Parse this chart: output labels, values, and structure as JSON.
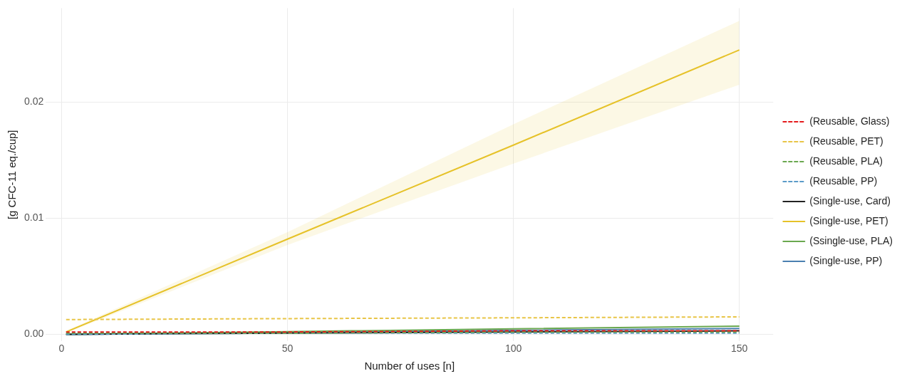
{
  "chart_data": {
    "type": "line",
    "xlabel": "Number of uses [n]",
    "ylabel": "[g CFC-11 eq./cup]",
    "x": [
      1,
      50,
      100,
      150
    ],
    "xlim": [
      -3.5,
      157.5
    ],
    "xticks": [
      0,
      50,
      100,
      150
    ],
    "ylim": [
      -0.0006,
      0.0281
    ],
    "yticks": [
      {
        "value": 0,
        "label": "0.00"
      },
      {
        "value": 0.01,
        "label": "0.01"
      },
      {
        "value": 0.02,
        "label": "0.02"
      }
    ],
    "grid": true,
    "legend": "right",
    "marker": "none",
    "series": [
      {
        "name": "(Reusable, Glass)",
        "color": "#e41a1c",
        "line_style": "dashed",
        "values": [
          0.0002,
          0.0002,
          0.0003,
          0.0003
        ]
      },
      {
        "name": "(Reusable, PET)",
        "color": "#e8c547",
        "line_style": "dashed",
        "values": [
          0.00127,
          0.00135,
          0.00142,
          0.0015
        ]
      },
      {
        "name": "(Reusable, PLA)",
        "color": "#6aa84f",
        "line_style": "dashed",
        "values": [
          0.0001,
          0.0001,
          0.0002,
          0.0002
        ]
      },
      {
        "name": "(Reusable, PP)",
        "color": "#5b9bc8",
        "line_style": "dashed",
        "values": [
          0.0,
          0.0001,
          0.0001,
          0.0001
        ]
      },
      {
        "name": "(Single-use, Card)",
        "color": "#222222",
        "line_style": "solid",
        "values": [
          0.0,
          0.0001,
          0.0002,
          0.0003
        ]
      },
      {
        "name": "(Single-use, PET)",
        "color": "#e6c229",
        "line_style": "solid",
        "values": [
          0.0002,
          0.0082,
          0.0163,
          0.0245
        ],
        "lower": [
          0.0001,
          0.0077,
          0.0147,
          0.0215
        ],
        "upper": [
          0.0003,
          0.0088,
          0.0181,
          0.027
        ]
      },
      {
        "name": "(Ssingle-use, PLA)",
        "color": "#6aa84f",
        "line_style": "solid",
        "values": [
          0.0,
          0.00023,
          0.00047,
          0.0007
        ]
      },
      {
        "name": "(Single-use, PP)",
        "color": "#4a7fb0",
        "line_style": "solid",
        "values": [
          0.0,
          0.00017,
          0.00034,
          0.0005
        ]
      }
    ]
  }
}
